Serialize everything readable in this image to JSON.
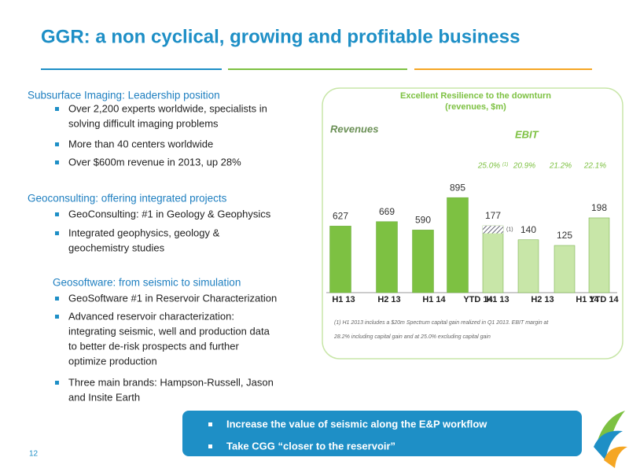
{
  "header": {
    "title": "GGR: a non cyclical, growing and profitable business"
  },
  "sections": [
    {
      "heading": "Subsurface Imaging: Leadership position",
      "bullets": [
        [
          "Over 2,200 experts worldwide, specialists in",
          "solving difficult imaging problems"
        ],
        [
          "More than 40 centers worldwide"
        ],
        [
          "Over $600m revenue in 2013, up 28%"
        ]
      ]
    },
    {
      "heading": "Geoconsulting: offering integrated projects",
      "bullets": [
        [
          "GeoConsulting: #1 in Geology & Geophysics"
        ],
        [
          "Integrated geophysics, geology &",
          "geochemistry studies"
        ]
      ]
    },
    {
      "heading": "Geosoftware: from seismic to simulation",
      "bullets": [
        [
          "GeoSoftware #1 in Reservoir Characterization"
        ],
        [
          "Advanced reservoir characterization:",
          "integrating seismic, well and production data",
          "to better de-risk prospects and further",
          "optimize production"
        ],
        [
          "Three main brands: Hampson-Russell, Jason",
          "and Insite Earth"
        ]
      ]
    }
  ],
  "callout": [
    "Increase the value of seismic along the E&P workflow",
    "Take CGG “closer to the reservoir”"
  ],
  "page_number": "12",
  "chart_data": {
    "type": "bar",
    "title": [
      "Excellent Resilience to the downturn",
      "(revenues, $m)"
    ],
    "series": [
      {
        "name": "Revenues",
        "color": "#7dc142",
        "categories": [
          "H1 13",
          "H2 13",
          "H1 14",
          "YTD 14"
        ],
        "values": [
          627,
          669,
          590,
          895
        ]
      },
      {
        "name": "EBIT",
        "color": "#c8e6a8",
        "categories": [
          "H1 13",
          "H2 13",
          "H1 14",
          "YTD 14"
        ],
        "values": [
          177,
          140,
          125,
          198
        ],
        "margins": [
          "25.0%",
          "20.9%",
          "21.2%",
          "22.1%"
        ],
        "margin_note": "(1)",
        "hatch_value": 20,
        "hatch_label": "(1)"
      }
    ],
    "footnote": [
      "(1) H1 2013 includes a $20m Spectrum capital gain realized in Q1 2013. EBIT margin at",
      "28.2% including capital gain and at 25.0% excluding capital gain"
    ]
  }
}
